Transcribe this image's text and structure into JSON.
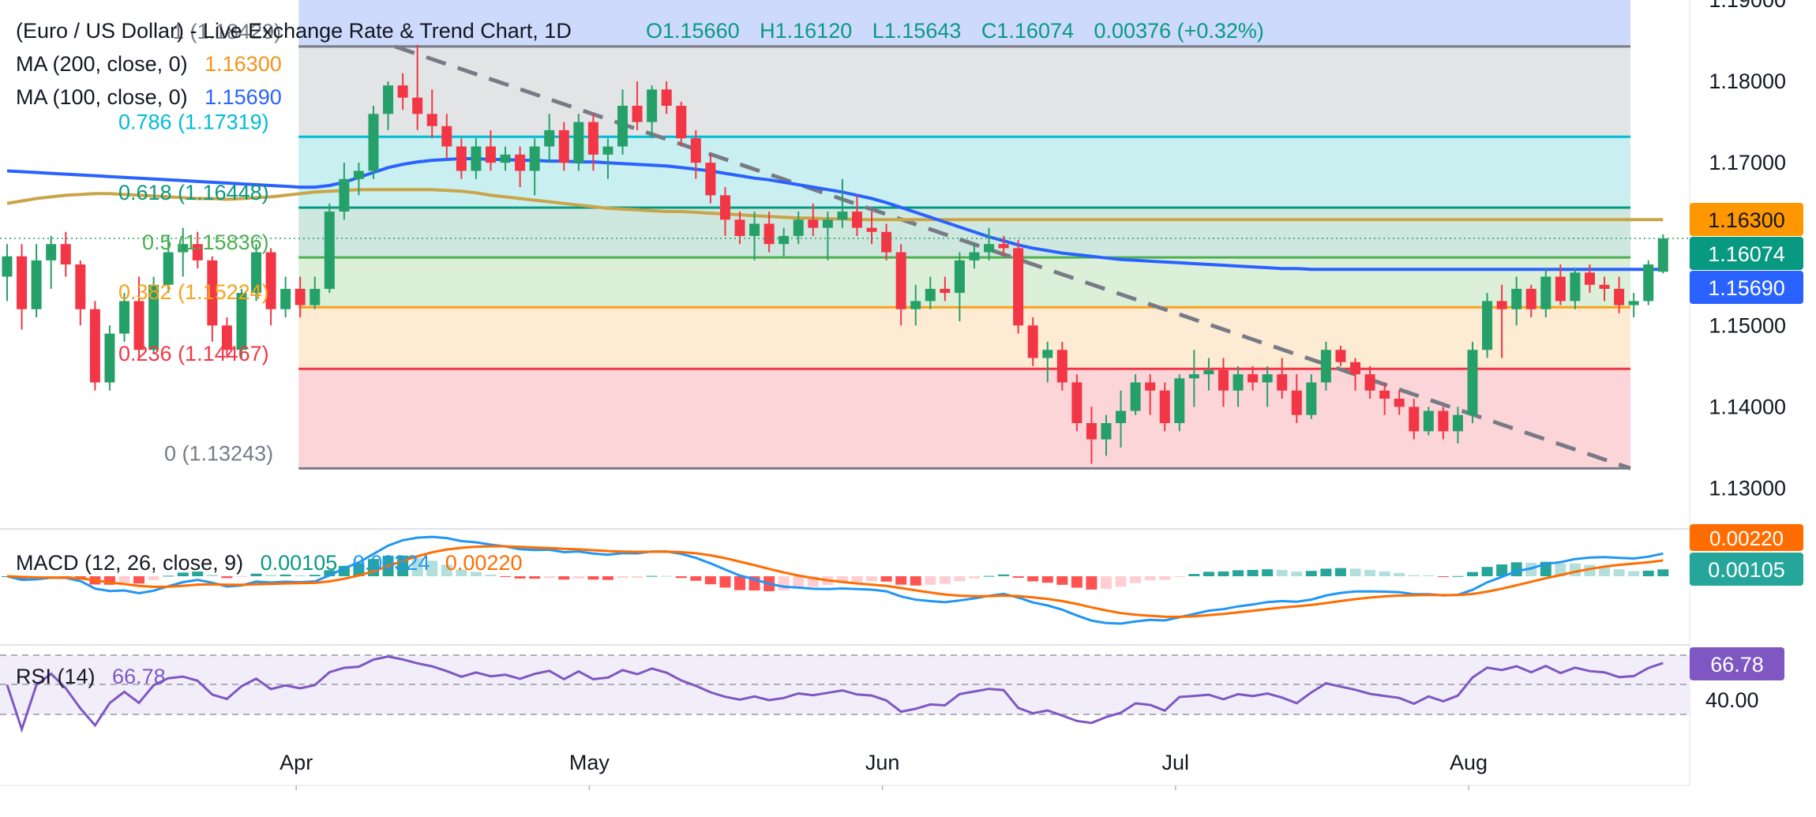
{
  "header": {
    "symbol_title": "(Euro / US Dollar) - Live Exchange Rate & Trend Chart",
    "interval": "1D",
    "open": "O1.15660",
    "high": "H1.16120",
    "low": "L1.15643",
    "close": "C1.16074",
    "change": "0.00376 (+0.32%)"
  },
  "indicators": {
    "ma200": {
      "label": "MA (200, close, 0)",
      "value": "1.16300",
      "color": "#f7931a"
    },
    "ma100": {
      "label": "MA (100, close, 0)",
      "value": "1.15690",
      "color": "#2962ff"
    },
    "macd": {
      "label": "MACD (12, 26, close, 9)",
      "hist": "0.00105",
      "macd": "0.00324",
      "signal": "0.00220"
    },
    "rsi": {
      "label": "RSI (14)",
      "value": "66.78"
    }
  },
  "price_badges": {
    "ma200": "1.16300",
    "close": "1.16074",
    "ma100": "1.15690",
    "macd_signal": "0.00220",
    "macd_hist": "0.00105",
    "rsi": "66.78",
    "rsi_level": "40.00"
  },
  "colors": {
    "up": "#26a069",
    "down": "#f23645",
    "ma200": "#c9a548",
    "ma100": "#2962ff",
    "macd_line": "#2196f3",
    "signal_line": "#ff6d00",
    "rsi_line": "#7e57c2"
  },
  "chart_data": {
    "type": "candlestick",
    "title": "(Euro / US Dollar) - Live Exchange Rate & Trend Chart",
    "ylim": [
      1.125,
      1.19
    ],
    "y_ticks": [
      "1.19000",
      "1.18000",
      "1.17000",
      "1.15000",
      "1.14000",
      "1.13000"
    ],
    "x_tick_labels": [
      "Apr",
      "May",
      "Jun",
      "Jul",
      "Aug"
    ],
    "x_tick_index": [
      20,
      40,
      60,
      80,
      100
    ],
    "fibonacci": [
      {
        "level": "1 (1.18429)",
        "price": 1.18429
      },
      {
        "level": "0.786 (1.17319)",
        "price": 1.17319
      },
      {
        "level": "0.618 (1.16448)",
        "price": 1.16448
      },
      {
        "level": "0.5 (1.15836)",
        "price": 1.15836
      },
      {
        "level": "0.382 (1.15224)",
        "price": 1.15224
      },
      {
        "level": "0.236 (1.14467)",
        "price": 1.14467
      },
      {
        "level": "0 (1.13243)",
        "price": 1.13243
      }
    ],
    "fib_text": [
      "1 (1.18429)",
      "0.786 (1.17319)",
      "0.618 (1.16448)",
      "0.5 (1.15836)",
      "0.382 (1.15224)",
      "0.236 (1.14467)",
      "0 (1.13243)"
    ],
    "candles": [
      [
        1.156,
        1.16,
        1.153,
        1.1585
      ],
      [
        1.1585,
        1.16,
        1.1495,
        1.152
      ],
      [
        1.152,
        1.16,
        1.151,
        1.158
      ],
      [
        1.158,
        1.161,
        1.1545,
        1.16
      ],
      [
        1.16,
        1.1615,
        1.156,
        1.1575
      ],
      [
        1.1575,
        1.158,
        1.15,
        1.152
      ],
      [
        1.152,
        1.153,
        1.142,
        1.143
      ],
      [
        1.143,
        1.15,
        1.142,
        1.149
      ],
      [
        1.149,
        1.154,
        1.148,
        1.153
      ],
      [
        1.153,
        1.156,
        1.146,
        1.147
      ],
      [
        1.147,
        1.156,
        1.1465,
        1.155
      ],
      [
        1.155,
        1.161,
        1.154,
        1.159
      ],
      [
        1.159,
        1.162,
        1.156,
        1.16
      ],
      [
        1.16,
        1.1615,
        1.157,
        1.158
      ],
      [
        1.158,
        1.1585,
        1.148,
        1.15
      ],
      [
        1.15,
        1.151,
        1.146,
        1.147
      ],
      [
        1.147,
        1.1545,
        1.146,
        1.154
      ],
      [
        1.154,
        1.16,
        1.153,
        1.159
      ],
      [
        1.159,
        1.1595,
        1.15,
        1.152
      ],
      [
        1.152,
        1.156,
        1.151,
        1.1545
      ],
      [
        1.1545,
        1.156,
        1.151,
        1.1525
      ],
      [
        1.1525,
        1.156,
        1.152,
        1.1545
      ],
      [
        1.1545,
        1.165,
        1.154,
        1.164
      ],
      [
        1.164,
        1.17,
        1.163,
        1.168
      ],
      [
        1.168,
        1.17,
        1.166,
        1.169
      ],
      [
        1.169,
        1.177,
        1.168,
        1.176
      ],
      [
        1.176,
        1.18,
        1.174,
        1.1795
      ],
      [
        1.1795,
        1.181,
        1.1765,
        1.178
      ],
      [
        1.178,
        1.1845,
        1.174,
        1.176
      ],
      [
        1.176,
        1.179,
        1.173,
        1.1745
      ],
      [
        1.1745,
        1.176,
        1.1705,
        1.172
      ],
      [
        1.172,
        1.173,
        1.168,
        1.169
      ],
      [
        1.169,
        1.173,
        1.168,
        1.172
      ],
      [
        1.172,
        1.174,
        1.169,
        1.17
      ],
      [
        1.17,
        1.172,
        1.169,
        1.171
      ],
      [
        1.171,
        1.172,
        1.167,
        1.169
      ],
      [
        1.169,
        1.173,
        1.166,
        1.172
      ],
      [
        1.172,
        1.176,
        1.17,
        1.174
      ],
      [
        1.174,
        1.175,
        1.169,
        1.17
      ],
      [
        1.17,
        1.176,
        1.169,
        1.175
      ],
      [
        1.175,
        1.176,
        1.169,
        1.171
      ],
      [
        1.171,
        1.173,
        1.168,
        1.172
      ],
      [
        1.172,
        1.179,
        1.171,
        1.177
      ],
      [
        1.177,
        1.18,
        1.174,
        1.175
      ],
      [
        1.175,
        1.1795,
        1.173,
        1.179
      ],
      [
        1.179,
        1.18,
        1.176,
        1.177
      ],
      [
        1.177,
        1.1775,
        1.172,
        1.173
      ],
      [
        1.173,
        1.174,
        1.168,
        1.17
      ],
      [
        1.17,
        1.171,
        1.165,
        1.166
      ],
      [
        1.166,
        1.167,
        1.161,
        1.163
      ],
      [
        1.163,
        1.164,
        1.16,
        1.161
      ],
      [
        1.161,
        1.164,
        1.158,
        1.1625
      ],
      [
        1.1625,
        1.164,
        1.159,
        1.16
      ],
      [
        1.16,
        1.162,
        1.1585,
        1.161
      ],
      [
        1.161,
        1.164,
        1.16,
        1.163
      ],
      [
        1.163,
        1.165,
        1.161,
        1.162
      ],
      [
        1.162,
        1.164,
        1.158,
        1.163
      ],
      [
        1.163,
        1.168,
        1.162,
        1.164
      ],
      [
        1.164,
        1.166,
        1.161,
        1.162
      ],
      [
        1.162,
        1.164,
        1.16,
        1.1615
      ],
      [
        1.1615,
        1.1625,
        1.158,
        1.159
      ],
      [
        1.159,
        1.16,
        1.15,
        1.152
      ],
      [
        1.152,
        1.155,
        1.15,
        1.153
      ],
      [
        1.153,
        1.156,
        1.152,
        1.1545
      ],
      [
        1.1545,
        1.156,
        1.153,
        1.154
      ],
      [
        1.154,
        1.159,
        1.1505,
        1.158
      ],
      [
        1.158,
        1.16,
        1.157,
        1.159
      ],
      [
        1.159,
        1.162,
        1.158,
        1.16
      ],
      [
        1.16,
        1.161,
        1.1585,
        1.1595
      ],
      [
        1.1595,
        1.1605,
        1.149,
        1.15
      ],
      [
        1.15,
        1.151,
        1.145,
        1.146
      ],
      [
        1.146,
        1.148,
        1.143,
        1.147
      ],
      [
        1.147,
        1.148,
        1.142,
        1.143
      ],
      [
        1.143,
        1.144,
        1.137,
        1.138
      ],
      [
        1.138,
        1.14,
        1.133,
        1.136
      ],
      [
        1.136,
        1.139,
        1.134,
        1.138
      ],
      [
        1.138,
        1.142,
        1.135,
        1.1395
      ],
      [
        1.1395,
        1.144,
        1.139,
        1.143
      ],
      [
        1.143,
        1.144,
        1.139,
        1.142
      ],
      [
        1.142,
        1.143,
        1.137,
        1.138
      ],
      [
        1.138,
        1.144,
        1.137,
        1.1435
      ],
      [
        1.1435,
        1.147,
        1.14,
        1.144
      ],
      [
        1.144,
        1.146,
        1.142,
        1.1445
      ],
      [
        1.1445,
        1.146,
        1.14,
        1.142
      ],
      [
        1.142,
        1.145,
        1.14,
        1.144
      ],
      [
        1.144,
        1.145,
        1.142,
        1.143
      ],
      [
        1.143,
        1.145,
        1.14,
        1.144
      ],
      [
        1.144,
        1.146,
        1.141,
        1.142
      ],
      [
        1.142,
        1.144,
        1.138,
        1.139
      ],
      [
        1.139,
        1.144,
        1.1385,
        1.143
      ],
      [
        1.143,
        1.148,
        1.142,
        1.147
      ],
      [
        1.147,
        1.1475,
        1.145,
        1.1455
      ],
      [
        1.1455,
        1.146,
        1.142,
        1.144
      ],
      [
        1.144,
        1.145,
        1.141,
        1.142
      ],
      [
        1.142,
        1.143,
        1.139,
        1.141
      ],
      [
        1.141,
        1.142,
        1.139,
        1.14
      ],
      [
        1.14,
        1.141,
        1.136,
        1.137
      ],
      [
        1.137,
        1.14,
        1.1365,
        1.1395
      ],
      [
        1.1395,
        1.14,
        1.136,
        1.137
      ],
      [
        1.137,
        1.14,
        1.1355,
        1.139
      ],
      [
        1.139,
        1.148,
        1.138,
        1.147
      ],
      [
        1.147,
        1.154,
        1.146,
        1.153
      ],
      [
        1.153,
        1.155,
        1.146,
        1.152
      ],
      [
        1.152,
        1.156,
        1.15,
        1.1545
      ],
      [
        1.1545,
        1.155,
        1.151,
        1.152
      ],
      [
        1.152,
        1.157,
        1.151,
        1.156
      ],
      [
        1.156,
        1.1575,
        1.1525,
        1.153
      ],
      [
        1.153,
        1.157,
        1.152,
        1.1565
      ],
      [
        1.1565,
        1.1575,
        1.154,
        1.155
      ],
      [
        1.155,
        1.156,
        1.153,
        1.1545
      ],
      [
        1.1545,
        1.156,
        1.1515,
        1.1525
      ],
      [
        1.1525,
        1.154,
        1.151,
        1.153
      ],
      [
        1.153,
        1.158,
        1.1525,
        1.1575
      ],
      [
        1.1566,
        1.1612,
        1.1564,
        1.1607
      ]
    ],
    "ma200": [
      1.165,
      1.1653,
      1.1656,
      1.1658,
      1.166,
      1.1661,
      1.1662,
      1.1662,
      1.1661,
      1.166,
      1.1659,
      1.1658,
      1.1657,
      1.1656,
      1.1656,
      1.1655,
      1.1656,
      1.1657,
      1.1658,
      1.166,
      1.1662,
      1.1664,
      1.1665,
      1.1666,
      1.1667,
      1.1667,
      1.1667,
      1.1667,
      1.1667,
      1.1667,
      1.1666,
      1.1665,
      1.1663,
      1.166,
      1.1658,
      1.1656,
      1.1654,
      1.1652,
      1.165,
      1.1648,
      1.1646,
      1.1644,
      1.1643,
      1.1642,
      1.1641,
      1.164,
      1.164,
      1.1639,
      1.1638,
      1.1637,
      1.1636,
      1.1635,
      1.1634,
      1.1633,
      1.1632,
      1.1632,
      1.1631,
      1.1631,
      1.163,
      1.163,
      1.163,
      1.163,
      1.163,
      1.163,
      1.163,
      1.163,
      1.163,
      1.163,
      1.163,
      1.163,
      1.163,
      1.163,
      1.163,
      1.163,
      1.163,
      1.163,
      1.163,
      1.163,
      1.163,
      1.163,
      1.163,
      1.163,
      1.163,
      1.163,
      1.163,
      1.163,
      1.163,
      1.163,
      1.163,
      1.163,
      1.163,
      1.163,
      1.163,
      1.163,
      1.163,
      1.163,
      1.163,
      1.163,
      1.163,
      1.163,
      1.163,
      1.163,
      1.163,
      1.163,
      1.163,
      1.163,
      1.163,
      1.163,
      1.163,
      1.163,
      1.163,
      1.163,
      1.163,
      1.163
    ],
    "ma100": [
      1.169,
      1.1689,
      1.1688,
      1.1687,
      1.1686,
      1.1685,
      1.1684,
      1.1683,
      1.1682,
      1.1681,
      1.168,
      1.1679,
      1.1678,
      1.1677,
      1.1676,
      1.1675,
      1.1674,
      1.1673,
      1.1672,
      1.1671,
      1.167,
      1.167,
      1.1672,
      1.1676,
      1.1682,
      1.1688,
      1.1694,
      1.1698,
      1.1701,
      1.1703,
      1.1704,
      1.1705,
      1.1705,
      1.1704,
      1.1704,
      1.1703,
      1.1703,
      1.1702,
      1.1702,
      1.1701,
      1.1701,
      1.17,
      1.1699,
      1.1698,
      1.1697,
      1.1696,
      1.1694,
      1.1692,
      1.169,
      1.1687,
      1.1684,
      1.1681,
      1.1679,
      1.1676,
      1.1673,
      1.167,
      1.1667,
      1.1664,
      1.166,
      1.1656,
      1.1651,
      1.1645,
      1.1639,
      1.1633,
      1.1627,
      1.1621,
      1.1615,
      1.1609,
      1.1604,
      1.1599,
      1.1595,
      1.1592,
      1.1589,
      1.1587,
      1.1585,
      1.1583,
      1.1581,
      1.158,
      1.1579,
      1.1578,
      1.1577,
      1.1576,
      1.1575,
      1.1574,
      1.1573,
      1.1572,
      1.1571,
      1.157,
      1.157,
      1.1569,
      1.1569,
      1.1569,
      1.1569,
      1.1569,
      1.1569,
      1.1569,
      1.1569,
      1.1569,
      1.1569,
      1.1569,
      1.1569,
      1.1569,
      1.1569,
      1.1569,
      1.1569,
      1.1569,
      1.1569,
      1.1569,
      1.1569,
      1.1569,
      1.1569,
      1.1569,
      1.1569,
      1.1569
    ],
    "trendline": {
      "from": [
        20,
        1.18429
      ],
      "to": [
        112,
        1.13243
      ]
    }
  }
}
